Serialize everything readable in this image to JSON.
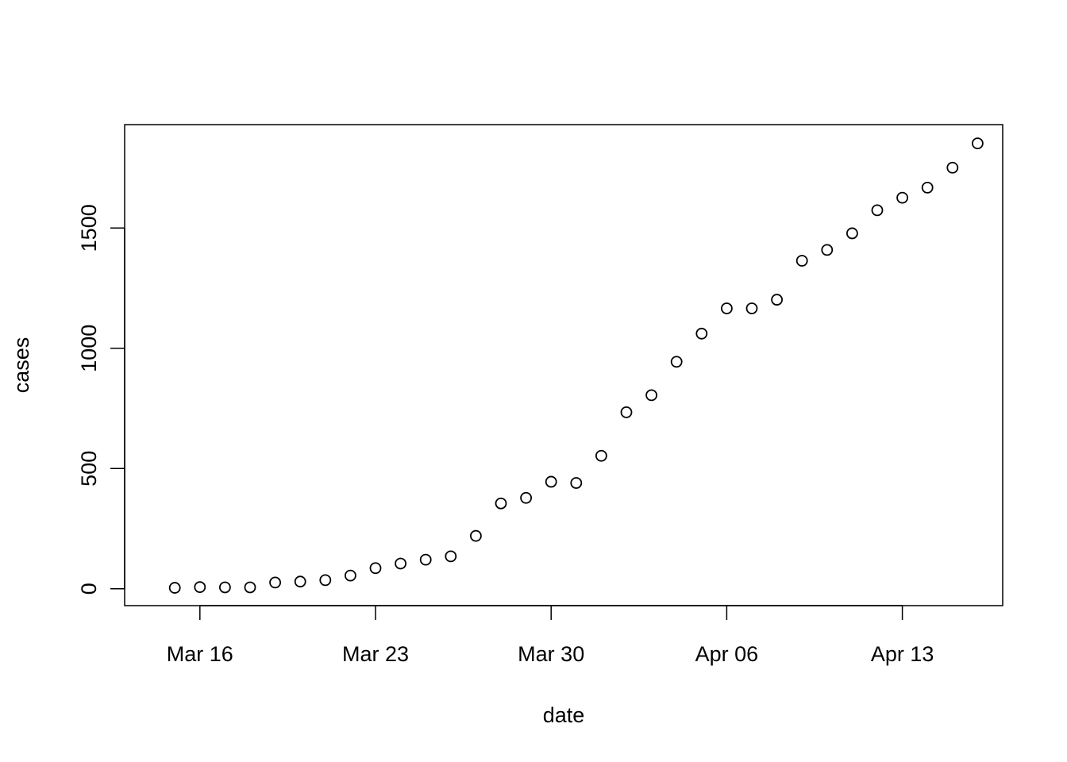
{
  "chart_data": {
    "type": "scatter",
    "title": "",
    "xlabel": "date",
    "ylabel": "cases",
    "xlim": [
      "2020-03-13",
      "2020-04-17"
    ],
    "ylim": [
      -70,
      1930
    ],
    "x_ticks": [
      {
        "date": "2020-03-16",
        "label": "Mar 16"
      },
      {
        "date": "2020-03-23",
        "label": "Mar 23"
      },
      {
        "date": "2020-03-30",
        "label": "Mar 30"
      },
      {
        "date": "2020-04-06",
        "label": "Apr 06"
      },
      {
        "date": "2020-04-13",
        "label": "Apr 13"
      }
    ],
    "y_ticks": [
      0,
      500,
      1000,
      1500
    ],
    "y_tick_labels": [
      "0",
      "500",
      "1000",
      "1500"
    ],
    "grid": false,
    "legend": "none",
    "point_style": "open-circle",
    "point_color": "#000000",
    "series": [
      {
        "x": [
          "2020-03-15",
          "2020-03-16",
          "2020-03-17",
          "2020-03-18",
          "2020-03-19",
          "2020-03-20",
          "2020-03-21",
          "2020-03-22",
          "2020-03-23",
          "2020-03-24",
          "2020-03-25",
          "2020-03-26",
          "2020-03-27",
          "2020-03-28",
          "2020-03-29",
          "2020-03-30",
          "2020-03-31",
          "2020-04-01",
          "2020-04-02",
          "2020-04-03",
          "2020-04-04",
          "2020-04-05",
          "2020-04-06",
          "2020-04-07",
          "2020-04-08",
          "2020-04-09",
          "2020-04-10",
          "2020-04-11",
          "2020-04-12",
          "2020-04-13",
          "2020-04-14",
          "2020-04-15",
          "2020-04-16"
        ],
        "y": [
          4,
          7,
          6,
          6,
          26,
          30,
          36,
          55,
          86,
          105,
          121,
          135,
          220,
          355,
          378,
          445,
          440,
          553,
          734,
          805,
          944,
          1061,
          1166,
          1166,
          1202,
          1364,
          1409,
          1478,
          1574,
          1626,
          1668,
          1751,
          1852
        ]
      }
    ]
  }
}
